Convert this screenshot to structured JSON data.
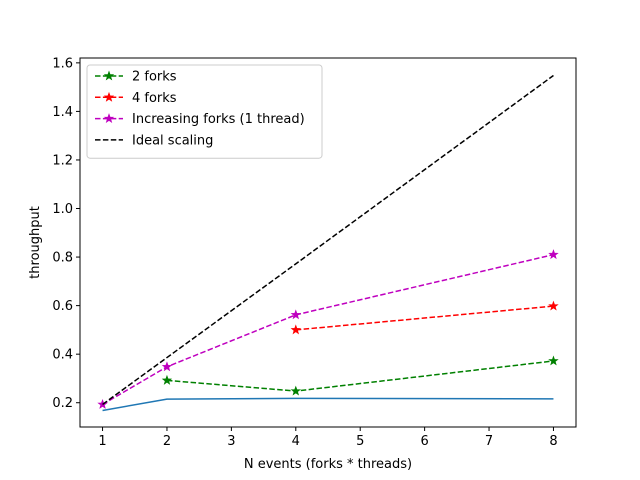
{
  "chart_data": {
    "type": "line",
    "xlabel": "N events (forks * threads)",
    "ylabel": "throughput",
    "xlim": [
      0.65,
      8.35
    ],
    "ylim": [
      0.1,
      1.62
    ],
    "xticks": [
      1,
      2,
      3,
      4,
      5,
      6,
      7,
      8
    ],
    "yticks": [
      0.2,
      0.4,
      0.6,
      0.8,
      1.0,
      1.2,
      1.4,
      1.6
    ],
    "ytick_labels": [
      "0.2",
      "0.4",
      "0.6",
      "0.8",
      "1.0",
      "1.2",
      "1.4",
      "1.6"
    ],
    "grid": false,
    "legend_position": "upper-left",
    "series": [
      {
        "name": "",
        "color": "#1f77b4",
        "style": "solid",
        "marker": "none",
        "x": [
          1,
          2,
          4,
          8
        ],
        "y": [
          0.168,
          0.215,
          0.218,
          0.216
        ]
      },
      {
        "name": "2 forks",
        "color": "#008000",
        "style": "dashed",
        "marker": "star",
        "x": [
          2,
          4,
          8
        ],
        "y": [
          0.292,
          0.248,
          0.372
        ]
      },
      {
        "name": "4 forks",
        "color": "#ff0000",
        "style": "dashed",
        "marker": "star",
        "x": [
          4,
          8
        ],
        "y": [
          0.5,
          0.598
        ]
      },
      {
        "name": "Increasing forks (1 thread)",
        "color": "#bf00bf",
        "style": "dashed",
        "marker": "star",
        "x": [
          1,
          2,
          4,
          8
        ],
        "y": [
          0.193,
          0.348,
          0.562,
          0.81
        ]
      },
      {
        "name": "Ideal scaling",
        "color": "#000000",
        "style": "dashed",
        "marker": "none",
        "x": [
          1,
          2,
          4,
          8
        ],
        "y": [
          0.193,
          0.386,
          0.772,
          1.548
        ]
      }
    ]
  }
}
